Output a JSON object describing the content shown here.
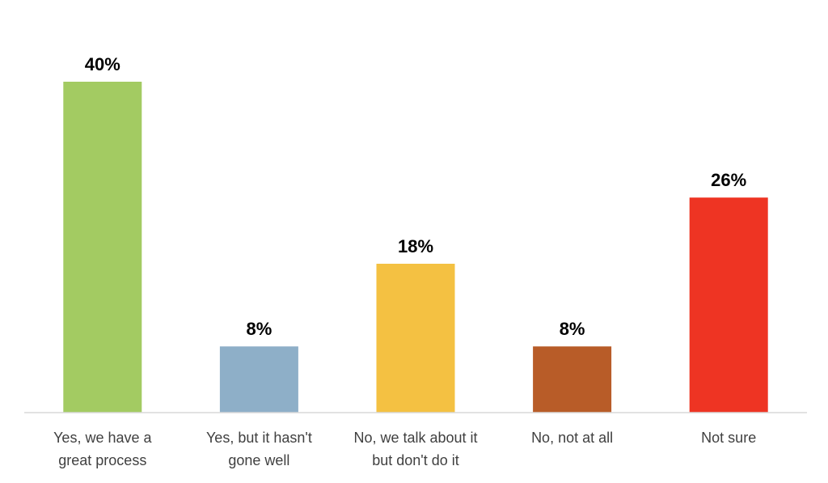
{
  "chart_data": {
    "type": "bar",
    "categories": [
      [
        "Yes, we have a",
        "great process"
      ],
      [
        "Yes, but it hasn't",
        "gone well"
      ],
      [
        "No, we talk about it",
        "but don't do it"
      ],
      [
        "No, not at all"
      ],
      [
        "Not sure"
      ]
    ],
    "values": [
      40,
      8,
      18,
      8,
      26
    ],
    "value_labels": [
      "40%",
      "8%",
      "18%",
      "8%",
      "26%"
    ],
    "colors": [
      "#A3CB62",
      "#8EAFC8",
      "#F4C142",
      "#B85C28",
      "#EE3423"
    ],
    "unit": "%",
    "ylim": [
      0,
      40
    ],
    "grid": false,
    "legend": "none",
    "title": "",
    "xlabel": "",
    "ylabel": ""
  }
}
